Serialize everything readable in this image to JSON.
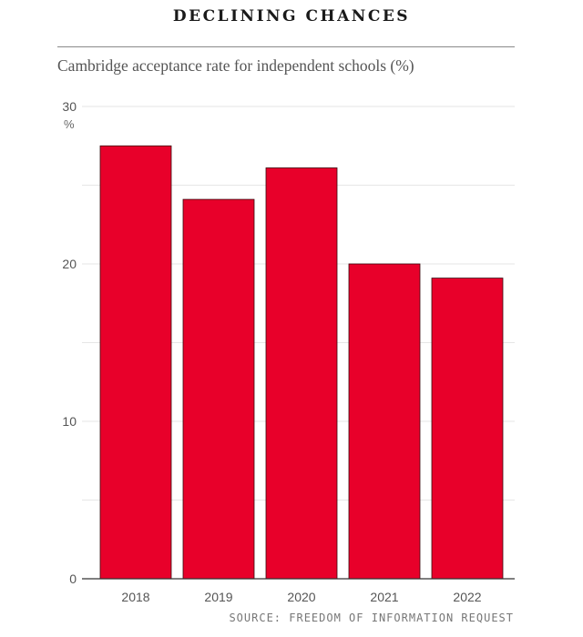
{
  "chart_data": {
    "type": "bar",
    "title": "DECLINING CHANCES",
    "subtitle": "Cambridge acceptance rate for independent schools (%)",
    "categories": [
      "2018",
      "2019",
      "2020",
      "2021",
      "2022"
    ],
    "values": [
      27.5,
      24.1,
      26.1,
      20.0,
      19.1
    ],
    "ylim": [
      0,
      30
    ],
    "yticks": [
      0,
      10,
      20,
      30
    ],
    "ytick_labels": [
      "0",
      "10",
      "20",
      "30"
    ],
    "yunit": "%",
    "grid": true,
    "bar_color": "#e8002a",
    "source": "SOURCE: FREEDOM OF INFORMATION REQUEST"
  }
}
